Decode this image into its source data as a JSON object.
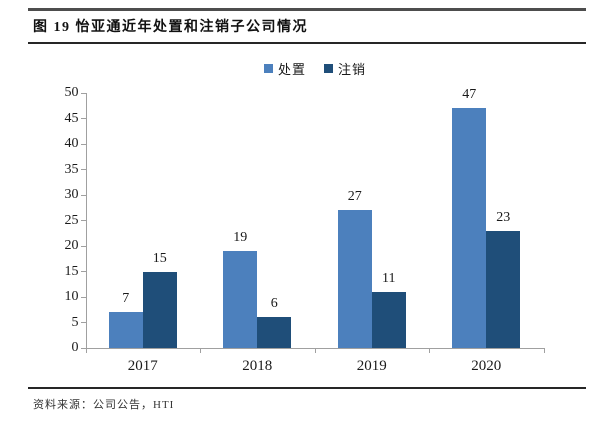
{
  "header": {
    "title": "图 19 怡亚通近年处置和注销子公司情况"
  },
  "footer": {
    "source": "资料来源：公司公告，HTI"
  },
  "chart_data": {
    "type": "bar",
    "title": "图 19 怡亚通近年处置和注销子公司情况",
    "categories": [
      "2017",
      "2018",
      "2019",
      "2020"
    ],
    "series": [
      {
        "name": "处置",
        "color": "#4C80BD",
        "values": [
          7,
          19,
          27,
          47
        ]
      },
      {
        "name": "注销",
        "color": "#1F4E79",
        "values": [
          15,
          6,
          11,
          23
        ]
      }
    ],
    "xlabel": "",
    "ylabel": "",
    "ylim": [
      0,
      50
    ],
    "ytick_step": 5,
    "yticks": [
      0,
      5,
      10,
      15,
      20,
      25,
      30,
      35,
      40,
      45,
      50
    ],
    "grid": false,
    "legend_position": "top-center",
    "value_labels": true,
    "axis_color": "#a0a0a0",
    "text_color": "#1a1a1a"
  }
}
